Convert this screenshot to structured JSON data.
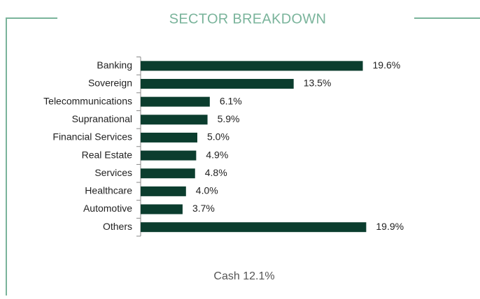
{
  "chart_data": {
    "type": "barh",
    "title": "SECTOR BREAKDOWN",
    "categories": [
      "Banking",
      "Sovereign",
      "Telecommunications",
      "Supranational",
      "Financial Services",
      "Real Estate",
      "Services",
      "Healthcare",
      "Automotive",
      "Others"
    ],
    "values": [
      19.6,
      13.5,
      6.1,
      5.9,
      5.0,
      4.9,
      4.8,
      4.0,
      3.7,
      19.9
    ],
    "value_labels": [
      "19.6%",
      "13.5%",
      "6.1%",
      "5.9%",
      "5.0%",
      "4.9%",
      "4.8%",
      "4.0%",
      "3.7%",
      "19.9%"
    ],
    "color": "#0b3d2e",
    "footer": "Cash 12.1%"
  }
}
